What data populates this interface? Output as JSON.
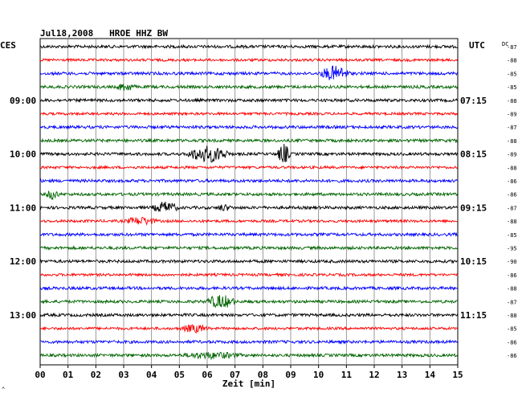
{
  "header": {
    "title": "Jul18,2008   HROE HHZ BW",
    "left_zone": "CES",
    "right_zone": "UTC",
    "dc_label": "DC"
  },
  "x_axis": {
    "label": "Zeit [min]",
    "ticks": [
      "00",
      "01",
      "02",
      "03",
      "04",
      "05",
      "06",
      "07",
      "08",
      "09",
      "10",
      "11",
      "12",
      "13",
      "14",
      "15"
    ]
  },
  "left_labels": [
    {
      "row": 4,
      "text": "09:00"
    },
    {
      "row": 8,
      "text": "10:00"
    },
    {
      "row": 12,
      "text": "11:00"
    },
    {
      "row": 16,
      "text": "12:00"
    },
    {
      "row": 20,
      "text": "13:00"
    }
  ],
  "right_labels": [
    {
      "row": 4,
      "text": "07:15"
    },
    {
      "row": 8,
      "text": "08:15"
    },
    {
      "row": 12,
      "text": "09:15"
    },
    {
      "row": 16,
      "text": "10:15"
    },
    {
      "row": 20,
      "text": "11:15"
    }
  ],
  "dc_values": [
    "-87",
    "-88",
    "-85",
    "-85",
    "-88",
    "-89",
    "-87",
    "-88",
    "-89",
    "-88",
    "-86",
    "-86",
    "-87",
    "-88",
    "-85",
    "-95",
    "-90",
    "-86",
    "-88",
    "-87",
    "-88",
    "-85",
    "-86",
    "-86"
  ],
  "trace_colors": [
    "#000000",
    "#ff0000",
    "#0000ff",
    "#006400"
  ],
  "grid_color": "#808080",
  "footer_mark": "^",
  "chart_data": {
    "type": "line",
    "title": "Jul18,2008   HROE HHZ BW",
    "xlabel": "Zeit [min]",
    "xlim": [
      0,
      15
    ],
    "rows": 24,
    "row_color_cycle": [
      "black",
      "red",
      "blue",
      "green"
    ],
    "events": [
      {
        "row": 2,
        "start": 10.0,
        "end": 11.4,
        "amp": 8
      },
      {
        "row": 3,
        "start": 2.7,
        "end": 3.6,
        "amp": 4
      },
      {
        "row": 8,
        "start": 5.2,
        "end": 7.2,
        "amp": 9
      },
      {
        "row": 8,
        "start": 8.5,
        "end": 9.1,
        "amp": 11
      },
      {
        "row": 11,
        "start": 0.2,
        "end": 0.8,
        "amp": 5
      },
      {
        "row": 12,
        "start": 4.0,
        "end": 5.2,
        "amp": 6
      },
      {
        "row": 12,
        "start": 6.3,
        "end": 7.0,
        "amp": 3
      },
      {
        "row": 13,
        "start": 3.0,
        "end": 4.5,
        "amp": 4
      },
      {
        "row": 19,
        "start": 5.9,
        "end": 7.3,
        "amp": 7
      },
      {
        "row": 21,
        "start": 5.0,
        "end": 6.3,
        "amp": 4
      },
      {
        "row": 23,
        "start": 5.0,
        "end": 7.8,
        "amp": 3
      }
    ]
  }
}
